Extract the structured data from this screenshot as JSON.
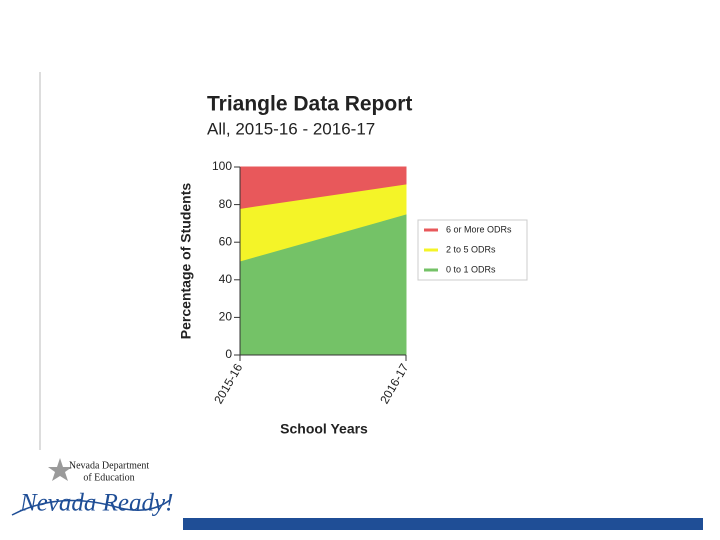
{
  "chart_data": {
    "type": "stacked_area",
    "title": "Triangle Data Report",
    "subtitle": "All, 2015-16 - 2016-17",
    "x_label": "School Years",
    "y_label": "Percentage of Students",
    "categories": [
      "2015-16",
      "2016-17"
    ],
    "series": [
      {
        "name": "6 or More ODRs",
        "color": "#e8585b",
        "values": [
          22,
          9
        ]
      },
      {
        "name": "2 to 5 ODRs",
        "color": "#f4f428",
        "values": [
          28,
          16
        ]
      },
      {
        "name": "0 to 1 ODRs",
        "color": "#74c267",
        "values": [
          50,
          75
        ]
      }
    ],
    "ylim": [
      0,
      100
    ],
    "yticks": [
      0,
      20,
      40,
      60,
      80,
      100
    ],
    "legend": "right"
  },
  "logo": {
    "department": [
      "Nevada Department",
      "of Education"
    ],
    "tagline": "Nevada Ready!"
  }
}
